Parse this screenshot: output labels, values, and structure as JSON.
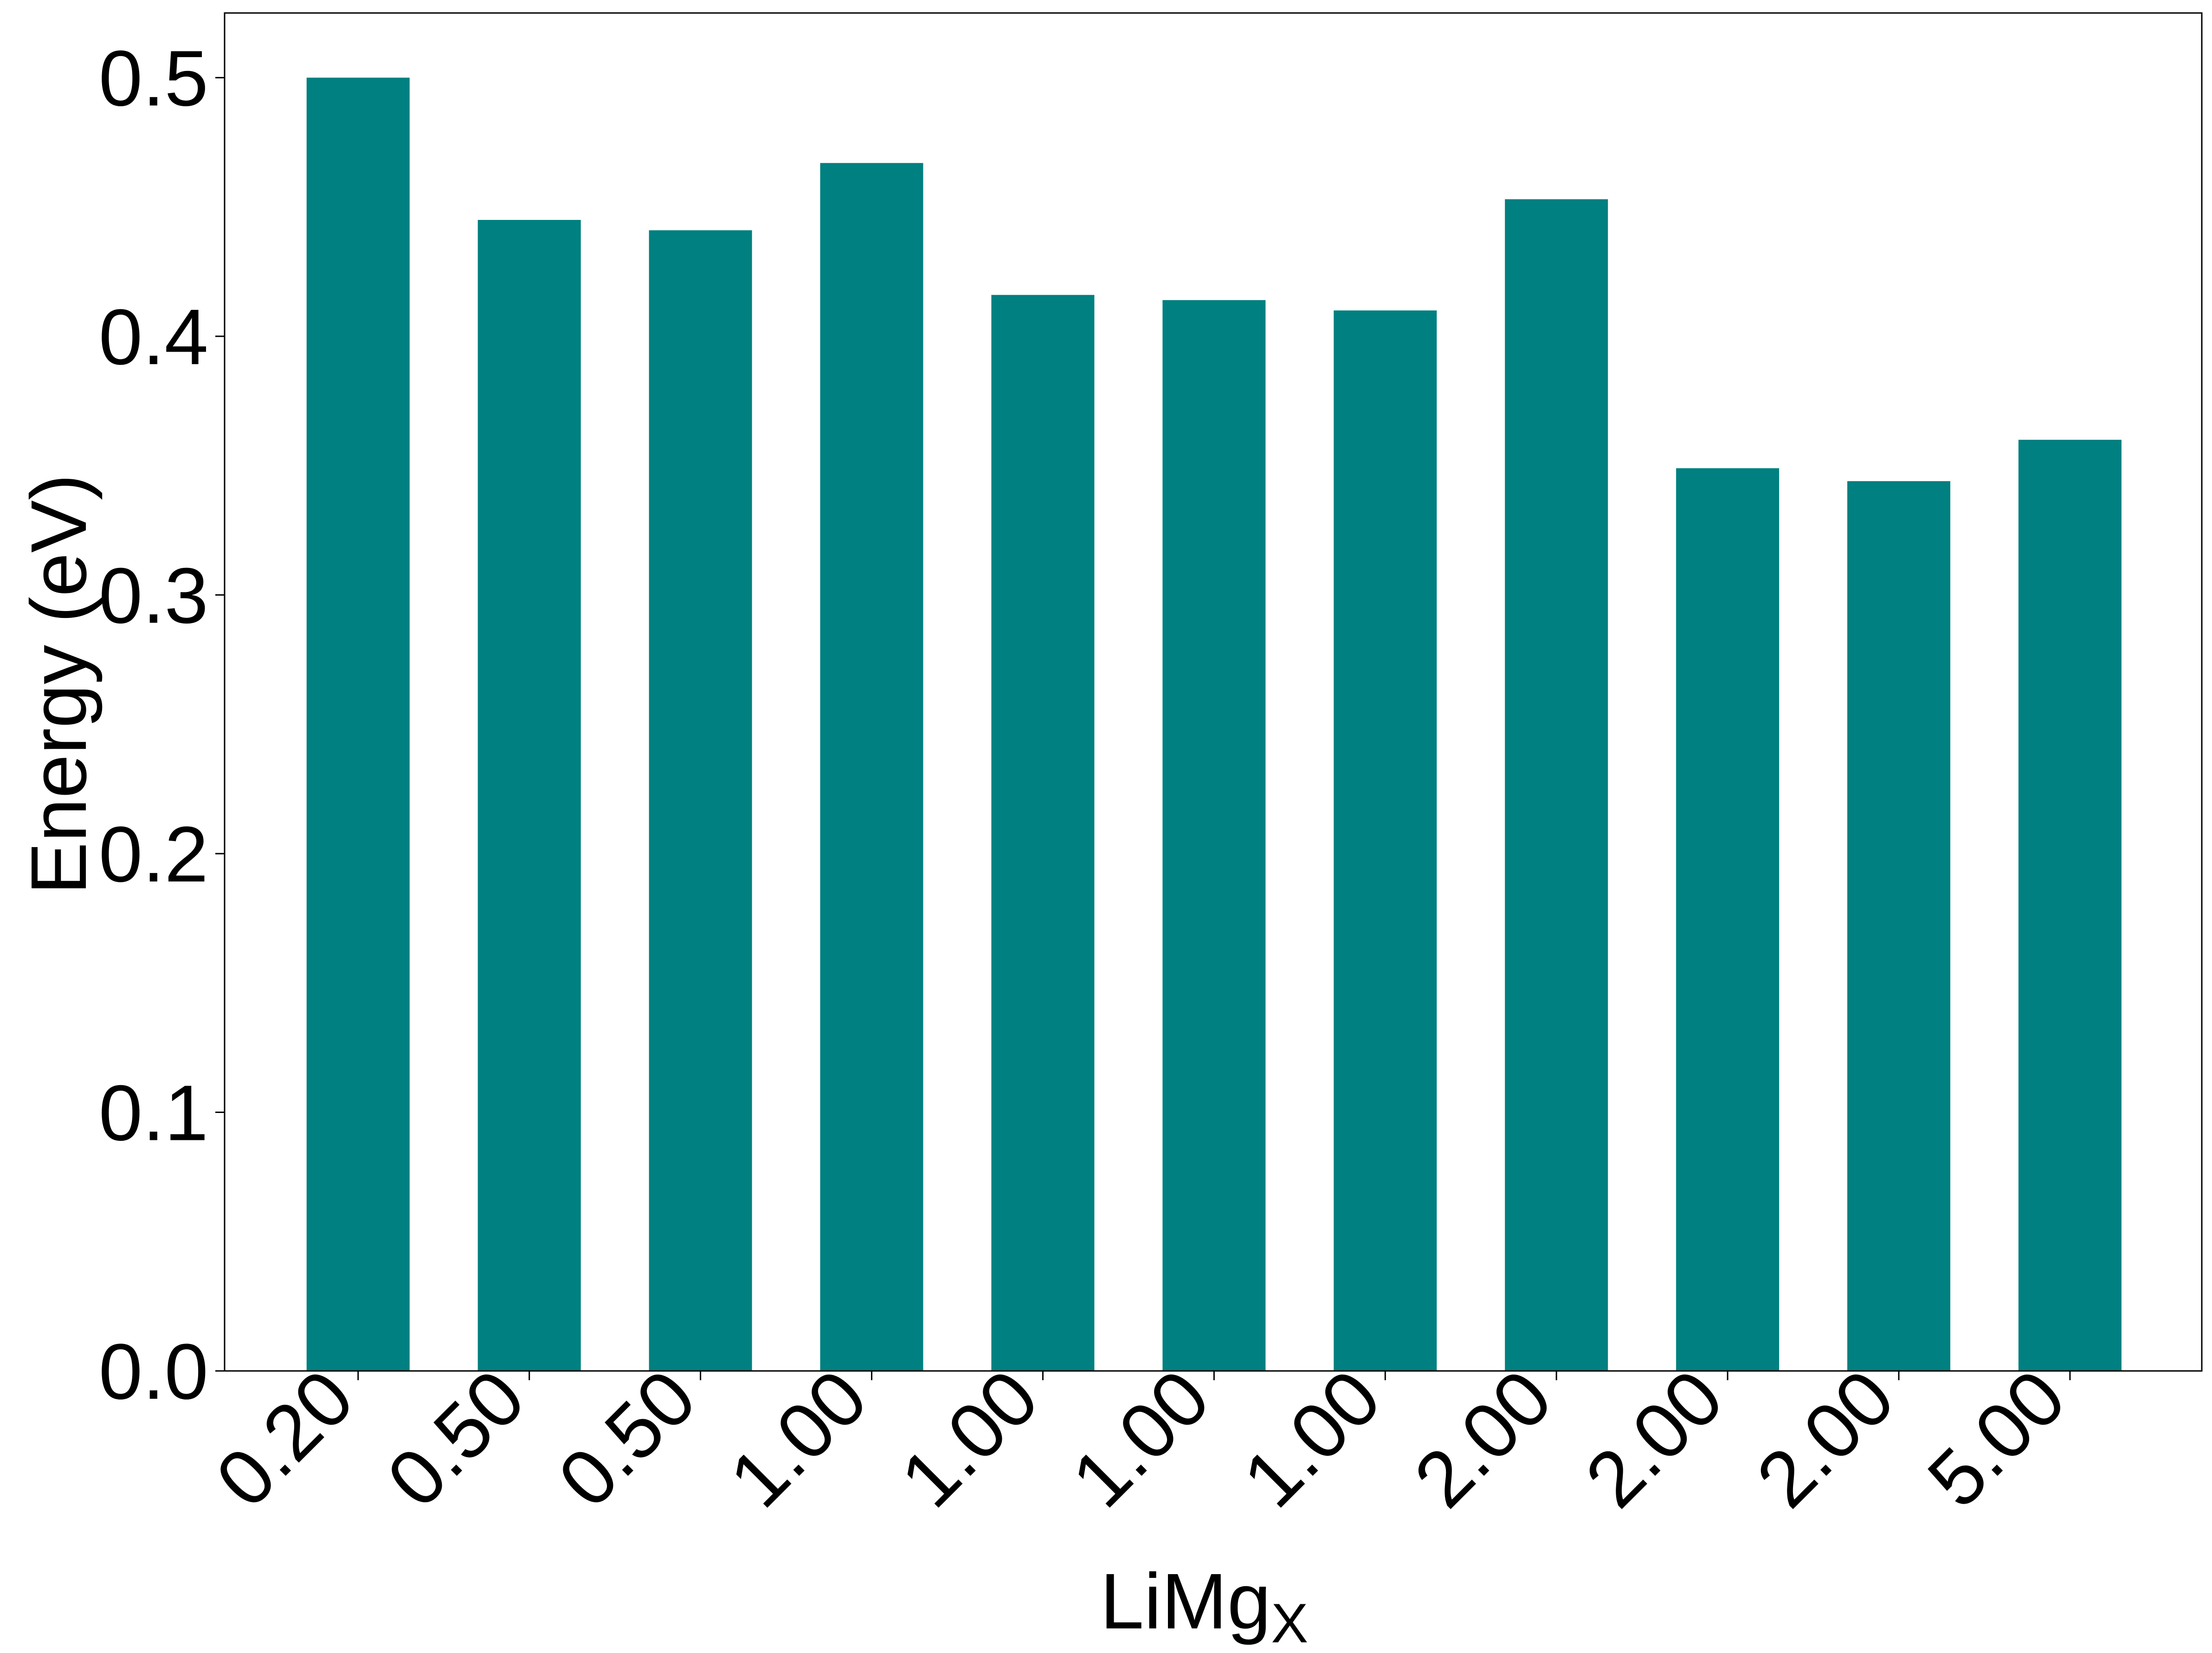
{
  "chart_data": {
    "type": "bar",
    "title": "",
    "xlabel": "LiMg",
    "xlabel_subscript": "X",
    "ylabel": "Energy (eV)",
    "categories": [
      "0.20",
      "0.50",
      "0.50",
      "1.00",
      "1.00",
      "1.00",
      "1.00",
      "2.00",
      "2.00",
      "2.00",
      "5.00"
    ],
    "values": [
      0.5,
      0.445,
      0.441,
      0.467,
      0.416,
      0.414,
      0.41,
      0.453,
      0.349,
      0.344,
      0.36
    ],
    "ylim": [
      0,
      0.525
    ],
    "yticks": [
      "0.0",
      "0.1",
      "0.2",
      "0.3",
      "0.4",
      "0.5"
    ],
    "grid": false,
    "legend": "none",
    "bar_color": "#008080"
  }
}
